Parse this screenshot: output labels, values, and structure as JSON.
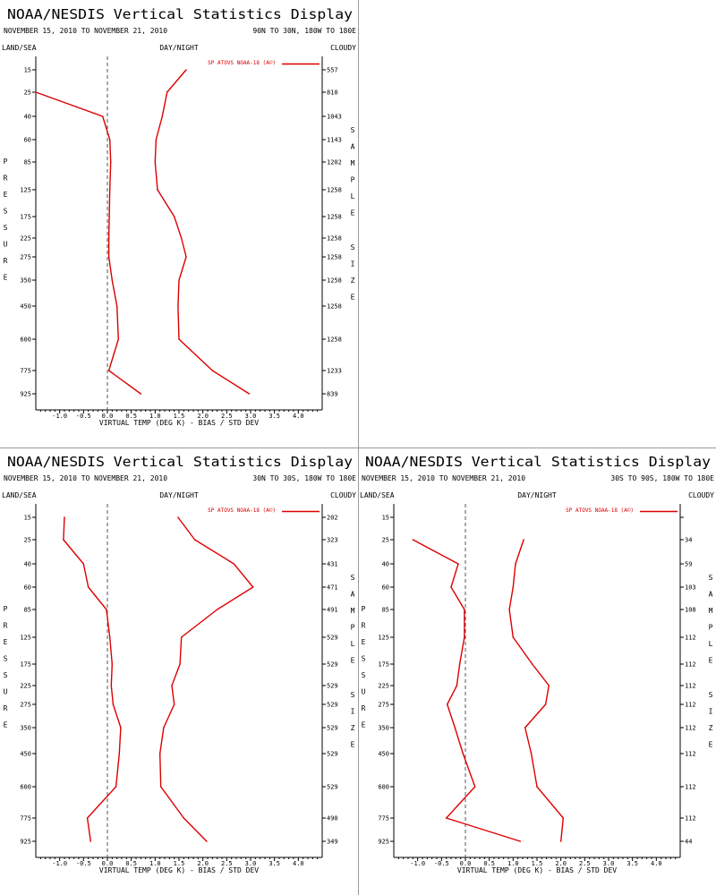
{
  "colors": {
    "series": "#dd0000",
    "axis": "#000000",
    "zero_line": "#555555",
    "divider": "#9a9a9a"
  },
  "chart_data": [
    {
      "type": "line",
      "title": "NOAA/NESDIS Vertical Statistics Display",
      "date_range": "NOVEMBER 15, 2010 TO NOVEMBER 21, 2010",
      "region": "90N TO 30N, 180W TO 180E",
      "header_left": "LAND/SEA",
      "header_mid": "DAY/NIGHT",
      "header_right": "CLOUDY",
      "xlabel": "VIRTUAL TEMP (DEG K) - BIAS / STD DEV",
      "ylabel": "PRESSURE",
      "right_label": "SAMPLE SIZE",
      "legend": "SP ATOVS NOAA-18 (A©)",
      "xlim": [
        -1.5,
        4.5
      ],
      "x_ticks": [
        "-1.0",
        "-0.5",
        "0.0",
        "0.5",
        "1.0",
        "1.5",
        "2.0",
        "2.5",
        "3.0",
        "3.5",
        "4.0"
      ],
      "y_levels": [
        "15",
        "25",
        "40",
        "60",
        "85",
        "125",
        "175",
        "225",
        "275",
        "350",
        "450",
        "600",
        "775",
        "925"
      ],
      "sample_sizes": [
        "557",
        "810",
        "1043",
        "1143",
        "1202",
        "1258",
        "1258",
        "1258",
        "1258",
        "1258",
        "1258",
        "1258",
        "1233",
        "839"
      ],
      "series": [
        {
          "name": "bias",
          "values": [
            null,
            -1.5,
            -0.1,
            0.05,
            0.07,
            0.05,
            0.04,
            0.03,
            0.03,
            0.1,
            0.2,
            0.23,
            0.03,
            0.7
          ]
        },
        {
          "name": "std_dev",
          "values": [
            1.65,
            1.25,
            1.15,
            1.02,
            1.0,
            1.05,
            1.4,
            1.55,
            1.65,
            1.5,
            1.48,
            1.5,
            2.2,
            2.97
          ]
        }
      ]
    },
    {
      "type": "line",
      "title": "NOAA/NESDIS Vertical Statistics Display",
      "date_range": "NOVEMBER 15, 2010 TO NOVEMBER 21, 2010",
      "region": "30N TO 30S, 180W TO 180E",
      "header_left": "LAND/SEA",
      "header_mid": "DAY/NIGHT",
      "header_right": "CLOUDY",
      "xlabel": "VIRTUAL TEMP (DEG K) - BIAS / STD DEV",
      "ylabel": "PRESSURE",
      "right_label": "SAMPLE SIZE",
      "legend": "SP ATOVS NOAA-18 (A©)",
      "xlim": [
        -1.5,
        4.5
      ],
      "x_ticks": [
        "-1.0",
        "-0.5",
        "0.0",
        "0.5",
        "1.0",
        "1.5",
        "2.0",
        "2.5",
        "3.0",
        "3.5",
        "4.0"
      ],
      "y_levels": [
        "15",
        "25",
        "40",
        "60",
        "85",
        "125",
        "175",
        "225",
        "275",
        "350",
        "450",
        "600",
        "775",
        "925"
      ],
      "sample_sizes": [
        "202",
        "323",
        "431",
        "471",
        "491",
        "529",
        "529",
        "529",
        "529",
        "529",
        "529",
        "529",
        "490",
        "349"
      ],
      "series": [
        {
          "name": "bias",
          "values": [
            -0.9,
            -0.92,
            -0.5,
            -0.4,
            -0.02,
            0.05,
            0.1,
            0.08,
            0.12,
            0.28,
            0.25,
            0.18,
            -0.42,
            -0.35
          ]
        },
        {
          "name": "std_dev",
          "values": [
            1.48,
            1.83,
            2.65,
            3.05,
            2.3,
            1.55,
            1.52,
            1.35,
            1.4,
            1.18,
            1.1,
            1.12,
            1.6,
            2.08
          ]
        }
      ]
    },
    {
      "type": "line",
      "title": "NOAA/NESDIS Vertical Statistics Display",
      "date_range": "NOVEMBER 15, 2010 TO NOVEMBER 21, 2010",
      "region": "30S TO 90S, 180W TO 180E",
      "header_left": "LAND/SEA",
      "header_mid": "DAY/NIGHT",
      "header_right": "CLOUDY",
      "xlabel": "VIRTUAL TEMP (DEG K) - BIAS / STD DEV",
      "ylabel": "PRESSURE",
      "right_label": "SAMPLE SIZE",
      "legend": "SP ATOVS NOAA-18 (A©)",
      "xlim": [
        -1.5,
        4.5
      ],
      "x_ticks": [
        "-1.0",
        "-0.5",
        "0.0",
        "0.5",
        "1.0",
        "1.5",
        "2.0",
        "2.5",
        "3.0",
        "3.5",
        "4.0"
      ],
      "y_levels": [
        "15",
        "25",
        "40",
        "60",
        "85",
        "125",
        "175",
        "225",
        "275",
        "350",
        "450",
        "600",
        "775",
        "925"
      ],
      "sample_sizes": [
        "",
        "34",
        "59",
        "103",
        "108",
        "112",
        "112",
        "112",
        "112",
        "112",
        "112",
        "112",
        "112",
        "44"
      ],
      "series": [
        {
          "name": "bias",
          "values": [
            null,
            -1.1,
            -0.15,
            -0.3,
            -0.02,
            -0.02,
            -0.12,
            -0.18,
            -0.38,
            -0.22,
            -0.05,
            0.2,
            -0.4,
            1.15
          ]
        },
        {
          "name": "std_dev",
          "values": [
            null,
            1.22,
            1.05,
            1.0,
            0.92,
            1.0,
            1.4,
            1.75,
            1.68,
            1.25,
            1.38,
            1.5,
            2.05,
            2.0
          ]
        }
      ]
    }
  ]
}
